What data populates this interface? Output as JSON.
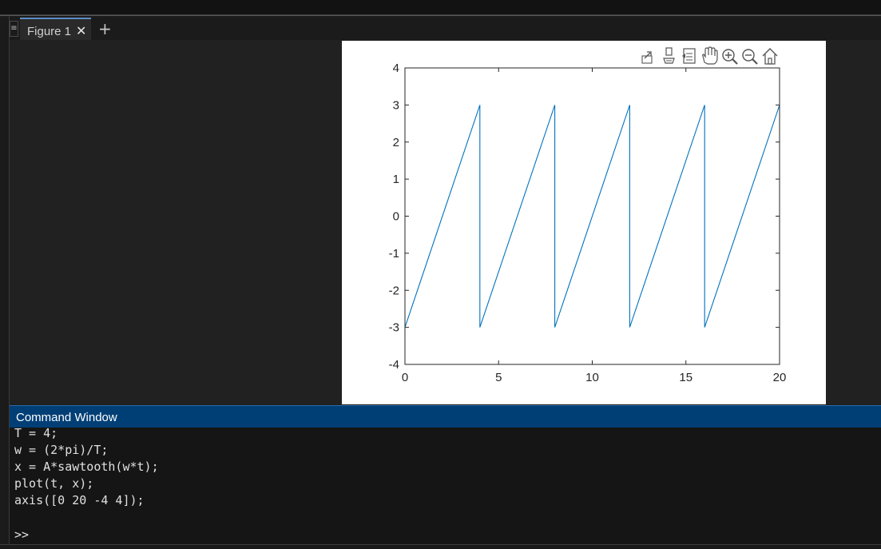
{
  "figure": {
    "tab_label": "Figure 1",
    "close_glyph": "✕",
    "add_glyph": "+",
    "grip_glyph": "≡"
  },
  "toolbar": {
    "icons": [
      "export-icon",
      "brush-icon",
      "datatip-icon",
      "pan-icon",
      "zoom-in-icon",
      "zoom-out-icon",
      "home-icon"
    ]
  },
  "chart_data": {
    "type": "line",
    "title": "",
    "xlabel": "",
    "ylabel": "",
    "xlim": [
      0,
      20
    ],
    "ylim": [
      -4,
      4
    ],
    "xticks": [
      0,
      5,
      10,
      15,
      20
    ],
    "yticks": [
      -4,
      -3,
      -2,
      -1,
      0,
      1,
      2,
      3,
      4
    ],
    "grid": false,
    "line_color": "#0072bd",
    "series": [
      {
        "x": [
          0,
          4,
          4,
          8,
          8,
          12,
          12,
          16,
          16,
          20
        ],
        "y": [
          -3,
          3,
          -3,
          3,
          -3,
          3,
          -3,
          3,
          -3,
          3
        ]
      }
    ]
  },
  "command_window": {
    "title": "Command Window",
    "lines": [
      "T = 4;",
      "w = (2*pi)/T;",
      "x = A*sawtooth(w*t);",
      "plot(t, x);",
      "axis([0 20 -4 4]);",
      "",
      ">>"
    ]
  }
}
